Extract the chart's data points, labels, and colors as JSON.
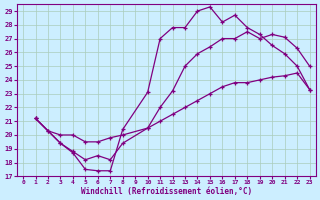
{
  "xlabel": "Windchill (Refroidissement éolien,°C)",
  "bg_color": "#cceeff",
  "line_color": "#800080",
  "grid_color": "#aaccbb",
  "xlim": [
    -0.5,
    23.5
  ],
  "ylim": [
    17,
    29.5
  ],
  "xticks": [
    0,
    1,
    2,
    3,
    4,
    5,
    6,
    7,
    8,
    9,
    10,
    11,
    12,
    13,
    14,
    15,
    16,
    17,
    18,
    19,
    20,
    21,
    22,
    23
  ],
  "yticks": [
    17,
    18,
    19,
    20,
    21,
    22,
    23,
    24,
    25,
    26,
    27,
    28,
    29
  ],
  "series1_x": [
    1,
    2,
    3,
    4,
    5,
    6,
    7,
    8,
    10,
    11,
    12,
    13,
    14,
    15,
    16,
    17,
    18,
    19,
    20,
    21,
    22,
    23
  ],
  "series1_y": [
    21.2,
    20.3,
    19.4,
    18.7,
    17.5,
    17.4,
    17.4,
    20.4,
    23.1,
    27.0,
    27.8,
    27.8,
    29.0,
    29.3,
    28.2,
    28.7,
    27.8,
    27.3,
    26.5,
    25.9,
    25.0,
    23.3
  ],
  "series2_x": [
    1,
    3,
    4,
    5,
    6,
    7,
    8,
    10,
    11,
    12,
    13,
    14,
    15,
    16,
    17,
    18,
    19,
    20,
    21,
    22,
    23
  ],
  "series2_y": [
    21.2,
    19.4,
    18.8,
    18.2,
    18.5,
    18.2,
    19.4,
    20.5,
    22.0,
    23.2,
    25.0,
    25.9,
    26.4,
    27.0,
    27.0,
    27.5,
    27.0,
    27.3,
    27.1,
    26.3,
    25.0
  ],
  "series3_x": [
    1,
    2,
    3,
    4,
    5,
    6,
    7,
    8,
    10,
    11,
    12,
    13,
    14,
    15,
    16,
    17,
    18,
    19,
    20,
    21,
    22,
    23
  ],
  "series3_y": [
    21.2,
    20.3,
    20.0,
    20.0,
    19.5,
    19.5,
    19.8,
    20.0,
    20.5,
    21.0,
    21.5,
    22.0,
    22.5,
    23.0,
    23.5,
    23.8,
    23.8,
    24.0,
    24.2,
    24.3,
    24.5,
    23.3
  ]
}
